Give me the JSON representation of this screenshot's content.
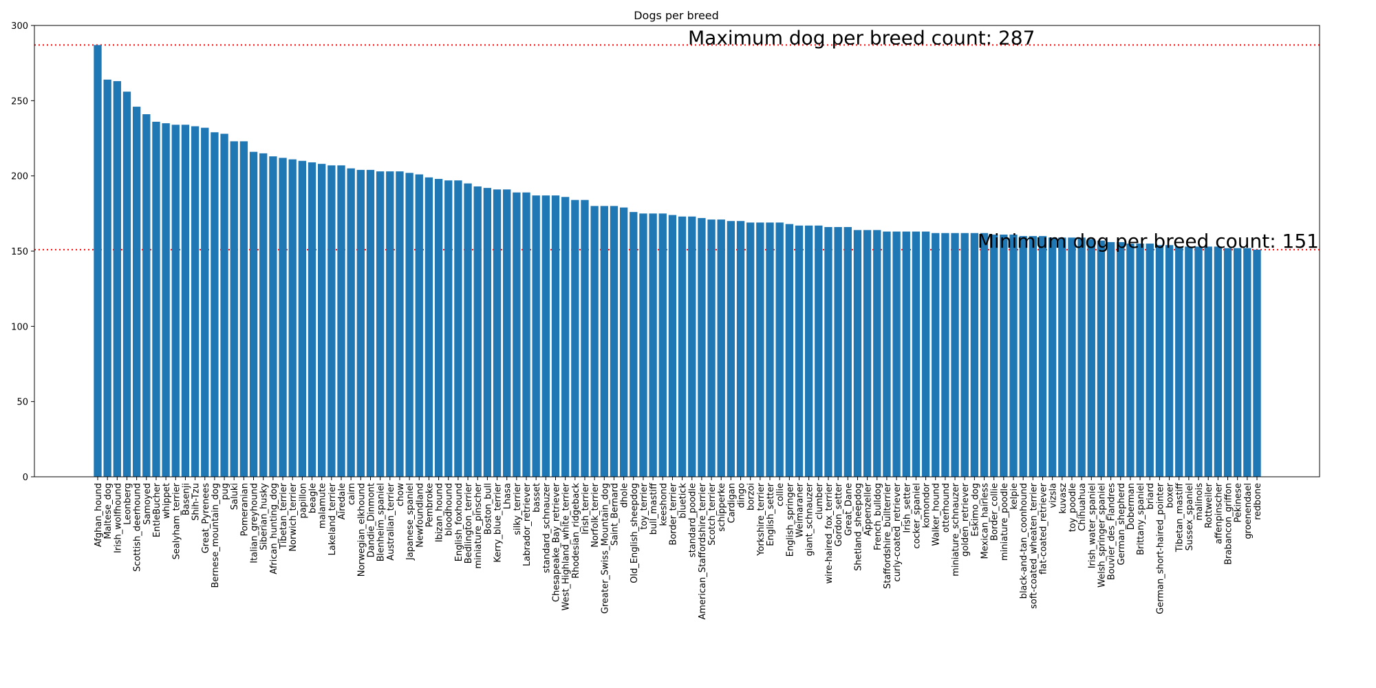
{
  "chart_data": {
    "type": "bar",
    "title": "Dogs per breed",
    "xlabel": "",
    "ylabel": "",
    "ylim": [
      0,
      300
    ],
    "yticks": [
      0,
      50,
      100,
      150,
      200,
      250,
      300
    ],
    "bar_color": "#1f77b4",
    "reference_line_color": "#ff0000",
    "grid": false,
    "categories": [
      "Afghan_hound",
      "Maltese_dog",
      "Irish_wolfhound",
      "Leonberg",
      "Scottish_deerhound",
      "Samoyed",
      "EntleBucher",
      "whippet",
      "Sealyham_terrier",
      "Basenji",
      "Shih-Tzu",
      "Great_Pyrenees",
      "Bernese_mountain_dog",
      "pug",
      "Saluki",
      "Pomeranian",
      "Italian_greyhound",
      "Siberian_husky",
      "African_hunting_dog",
      "Tibetan_terrier",
      "Norwich_terrier",
      "papillon",
      "beagle",
      "malamute",
      "Lakeland_terrier",
      "Airedale",
      "cairn",
      "Norwegian_elkhound",
      "Dandie_Dinmont",
      "Blenheim_spaniel",
      "Australian_terrier",
      "chow",
      "Japanese_spaniel",
      "Newfoundland",
      "Pembroke",
      "Ibizan_hound",
      "bloodhound",
      "English_foxhound",
      "Bedlington_terrier",
      "miniature_pinscher",
      "Boston_bull",
      "Kerry_blue_terrier",
      "Lhasa",
      "silky_terrier",
      "Labrador_retriever",
      "basset",
      "standard_schnauzer",
      "Chesapeake_Bay_retriever",
      "West_Highland_white_terrier",
      "Rhodesian_ridgeback",
      "Irish_terrier",
      "Norfolk_terrier",
      "Greater_Swiss_Mountain_dog",
      "Saint_Bernard",
      "dhole",
      "Old_English_sheepdog",
      "toy_terrier",
      "bull_mastiff",
      "keeshond",
      "Border_terrier",
      "bluetick",
      "standard_poodle",
      "American_Staffordshire_terrier",
      "Scotch_terrier",
      "schipperke",
      "Cardigan",
      "dingo",
      "borzoi",
      "Yorkshire_terrier",
      "English_setter",
      "collie",
      "English_springer",
      "Weimaraner",
      "giant_schnauzer",
      "clumber",
      "wire-haired_fox_terrier",
      "Gordon_setter",
      "Great_Dane",
      "Shetland_sheepdog",
      "Appenzeller",
      "French_bulldog",
      "Staffordshire_bullterrier",
      "curly-coated_retriever",
      "Irish_setter",
      "cocker_spaniel",
      "komondor",
      "Walker_hound",
      "otterhound",
      "miniature_schnauzer",
      "golden_retriever",
      "Eskimo_dog",
      "Mexican_hairless",
      "Border_collie",
      "miniature_poodle",
      "kelpie",
      "black-and-tan_coonhound",
      "soft-coated_wheaten_terrier",
      "flat-coated_retriever",
      "vizsla",
      "kuvasz",
      "toy_poodle",
      "Chihuahua",
      "Irish_water_spaniel",
      "Welsh_springer_spaniel",
      "Bouvier_des_Flandres",
      "German_shepherd",
      "Doberman",
      "Brittany_spaniel",
      "briard",
      "German_short-haired_pointer",
      "boxer",
      "Tibetan_mastiff",
      "Sussex_spaniel",
      "malinois",
      "Rottweiler",
      "affenpinscher",
      "Brabancon_griffon",
      "Pekinese",
      "groenendael",
      "redbone"
    ],
    "values": [
      287,
      264,
      263,
      256,
      246,
      241,
      236,
      235,
      234,
      234,
      233,
      232,
      229,
      228,
      223,
      223,
      216,
      215,
      213,
      212,
      211,
      210,
      209,
      208,
      207,
      207,
      205,
      204,
      204,
      203,
      203,
      203,
      202,
      201,
      199,
      198,
      197,
      197,
      195,
      193,
      192,
      191,
      191,
      189,
      189,
      187,
      187,
      187,
      186,
      184,
      184,
      180,
      180,
      180,
      179,
      176,
      175,
      175,
      175,
      174,
      173,
      173,
      172,
      171,
      171,
      170,
      170,
      169,
      169,
      169,
      169,
      168,
      167,
      167,
      167,
      166,
      166,
      166,
      164,
      164,
      164,
      163,
      163,
      163,
      163,
      163,
      162,
      162,
      162,
      162,
      162,
      162,
      161,
      161,
      161,
      160,
      160,
      160,
      159,
      159,
      159,
      159,
      158,
      157,
      156,
      156,
      155,
      155,
      155,
      154,
      154,
      153,
      153,
      153,
      153,
      153,
      152,
      152,
      152,
      151
    ],
    "reference_lines": [
      {
        "y": 287,
        "label": "Maximum dog per breed count: 287"
      },
      {
        "y": 151,
        "label": "Minimum dog per breed count: 151"
      }
    ]
  }
}
